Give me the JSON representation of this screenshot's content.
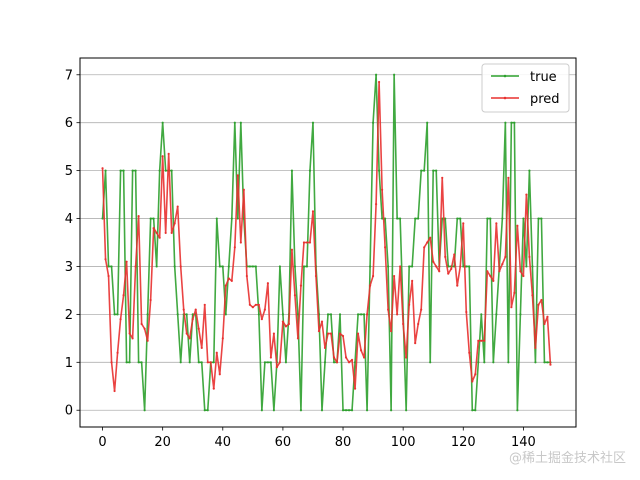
{
  "chart_data": {
    "type": "line",
    "title": "",
    "xlabel": "",
    "ylabel": "",
    "xlim": [
      -7.5,
      157.5
    ],
    "ylim": [
      -0.35,
      7.35
    ],
    "xticks": [
      0,
      20,
      40,
      60,
      80,
      100,
      120,
      140
    ],
    "yticks": [
      0,
      1,
      2,
      3,
      4,
      5,
      6,
      7
    ],
    "grid": "horizontal",
    "legend_position": "top-right",
    "series": [
      {
        "name": "true",
        "color": "#2ca02c",
        "values": [
          4,
          5,
          3,
          3,
          2,
          2,
          5,
          5,
          1,
          1,
          5,
          5,
          1,
          1,
          0,
          2,
          4,
          4,
          3,
          5,
          6,
          5,
          5,
          5,
          3,
          2,
          1,
          2,
          2,
          1,
          2,
          2,
          1,
          1,
          0,
          0,
          1,
          1,
          4,
          3,
          3,
          2,
          3,
          4,
          6,
          4,
          6,
          4,
          3,
          3,
          3,
          3,
          2,
          0,
          1,
          1,
          1,
          0,
          1,
          3,
          2,
          1,
          2,
          5,
          3,
          2,
          0,
          3,
          3,
          5,
          6,
          3,
          2,
          0,
          1,
          2,
          2,
          1,
          1,
          2,
          0,
          0,
          0,
          0,
          1,
          2,
          2,
          2,
          0,
          3,
          6,
          7,
          5,
          4,
          4,
          3,
          0,
          7,
          4,
          4,
          2,
          0,
          3,
          3,
          4,
          4,
          5,
          5,
          6,
          1,
          5,
          5,
          3,
          4,
          4,
          3,
          3,
          3,
          4,
          4,
          3,
          3,
          3,
          0,
          0,
          1,
          2,
          1,
          4,
          4,
          1,
          2,
          3,
          4,
          6,
          1,
          6,
          6,
          0,
          2,
          4,
          3,
          5,
          3,
          1,
          4,
          4,
          1,
          1,
          1
        ]
      },
      {
        "name": "pred",
        "color": "#e8302f",
        "values": [
          5.05,
          3.15,
          2.8,
          1.0,
          0.4,
          1.2,
          1.9,
          2.4,
          3.1,
          1.6,
          1.5,
          3.0,
          4.05,
          1.8,
          1.7,
          1.45,
          2.3,
          3.8,
          3.7,
          3.6,
          5.3,
          3.7,
          5.35,
          3.7,
          3.9,
          4.25,
          3.0,
          2.1,
          1.6,
          1.5,
          1.9,
          2.1,
          1.7,
          1.3,
          2.2,
          1.0,
          1.0,
          0.45,
          1.2,
          0.75,
          1.5,
          2.6,
          2.75,
          2.7,
          3.4,
          4.9,
          3.5,
          4.6,
          2.8,
          2.2,
          2.15,
          2.2,
          2.2,
          1.9,
          2.1,
          2.65,
          1.1,
          1.6,
          0.9,
          1.0,
          1.85,
          1.75,
          1.8,
          3.35,
          2.4,
          1.5,
          2.6,
          3.5,
          3.5,
          3.5,
          4.15,
          2.8,
          1.65,
          1.85,
          1.3,
          1.6,
          1.6,
          1.1,
          1.0,
          1.6,
          1.55,
          1.1,
          1.0,
          1.05,
          0.45,
          1.6,
          1.25,
          1.1,
          2.0,
          2.6,
          2.8,
          4.3,
          6.85,
          4.6,
          3.4,
          2.1,
          1.65,
          2.8,
          2.0,
          3.0,
          1.8,
          1.1,
          2.2,
          2.7,
          1.4,
          1.8,
          2.1,
          3.4,
          3.5,
          3.6,
          3.1,
          3.0,
          2.9,
          4.85,
          3.2,
          2.85,
          2.95,
          3.25,
          2.6,
          3.0,
          3.9,
          2.05,
          1.2,
          0.6,
          0.75,
          1.45,
          1.45,
          1.45,
          2.9,
          2.8,
          2.7,
          3.9,
          2.9,
          3.05,
          3.2,
          4.85,
          2.15,
          2.45,
          3.85,
          2.9,
          2.8,
          4.5,
          3.2,
          2.4,
          1.3,
          2.2,
          2.3,
          1.8,
          1.95,
          0.95
        ]
      }
    ]
  },
  "watermark": "@稀土掘金技术社区"
}
